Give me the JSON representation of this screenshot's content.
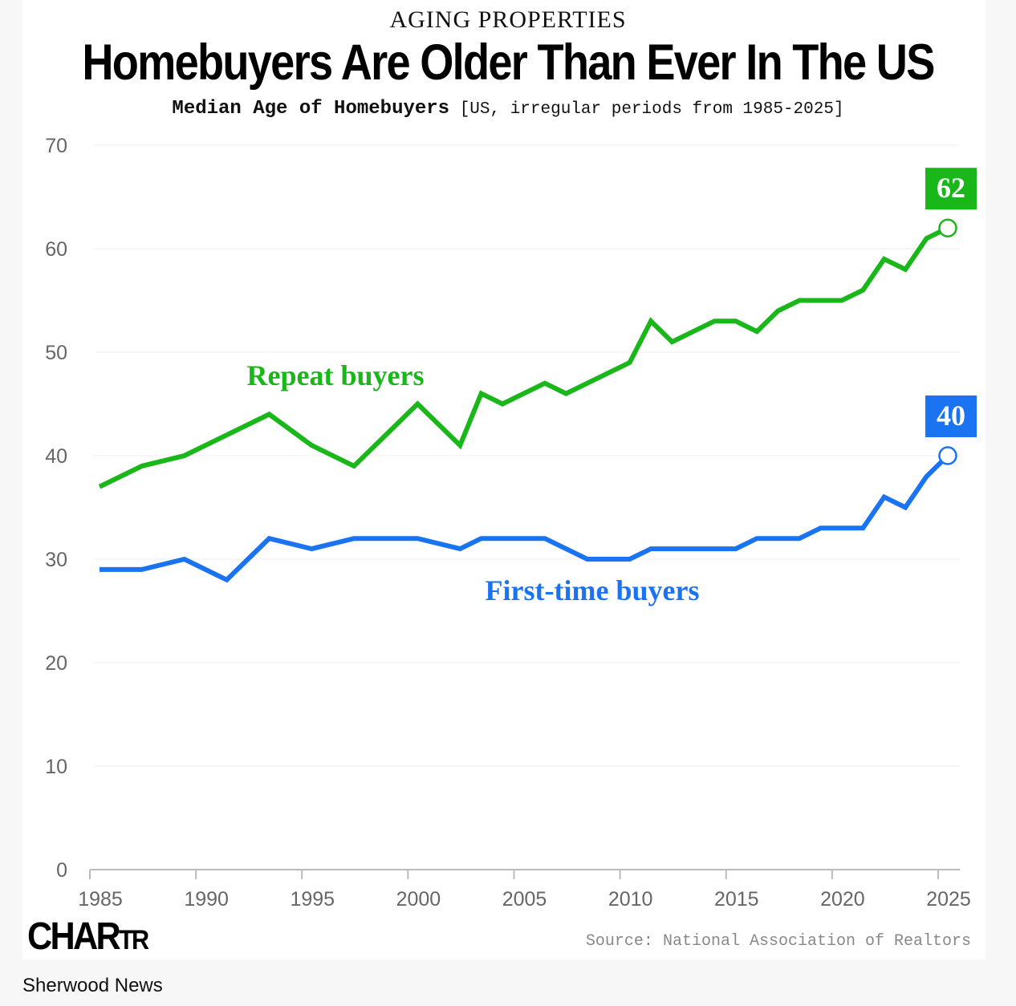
{
  "header": {
    "kicker": "AGING PROPERTIES",
    "title": "Homebuyers Are Older Than Ever In The US",
    "subtitle_bold": "Median Age of Homebuyers",
    "subtitle_rest": "[US, irregular periods from 1985-2025]"
  },
  "footer": {
    "logo_main": "CHAR",
    "logo_small": "TR",
    "source": "Source: National Association of Realtors",
    "publisher": "Sherwood News"
  },
  "colors": {
    "repeat": "#1ab71a",
    "first_time": "#1a73f0",
    "grid": "#eeeeee",
    "axis": "#bbbbbb"
  },
  "chart_data": {
    "type": "line",
    "title": "Median Age of Homebuyers",
    "xlim": [
      1985,
      2025
    ],
    "ylim": [
      0,
      70
    ],
    "x_ticks": [
      "1985",
      "1990",
      "1995",
      "2000",
      "2005",
      "2010",
      "2015",
      "2020",
      "2025"
    ],
    "y_ticks": [
      "0",
      "10",
      "20",
      "30",
      "40",
      "50",
      "60",
      "70"
    ],
    "grid": true,
    "series": [
      {
        "name": "Repeat buyers",
        "end_label": "62",
        "x": [
          1985,
          1987,
          1989,
          1991,
          1993,
          1995,
          1997,
          1999,
          2000,
          2002,
          2003,
          2004,
          2006,
          2007,
          2008,
          2010,
          2011,
          2012,
          2013,
          2014,
          2015,
          2016,
          2017,
          2018,
          2019,
          2020,
          2021,
          2022,
          2023,
          2024,
          2025
        ],
        "values": [
          37,
          39,
          40,
          42,
          44,
          41,
          39,
          43,
          45,
          41,
          46,
          45,
          47,
          46,
          47,
          49,
          53,
          51,
          52,
          53,
          53,
          52,
          54,
          55,
          55,
          55,
          56,
          59,
          58,
          61,
          62
        ]
      },
      {
        "name": "First-time buyers",
        "end_label": "40",
        "x": [
          1985,
          1987,
          1989,
          1991,
          1993,
          1995,
          1997,
          1999,
          2000,
          2002,
          2003,
          2004,
          2006,
          2007,
          2008,
          2010,
          2011,
          2012,
          2013,
          2014,
          2015,
          2016,
          2017,
          2018,
          2019,
          2020,
          2021,
          2022,
          2023,
          2024,
          2025
        ],
        "values": [
          29,
          29,
          30,
          28,
          32,
          31,
          32,
          32,
          32,
          31,
          32,
          32,
          32,
          31,
          30,
          30,
          31,
          31,
          31,
          31,
          31,
          32,
          32,
          32,
          33,
          33,
          33,
          36,
          35,
          38,
          40
        ]
      }
    ]
  }
}
